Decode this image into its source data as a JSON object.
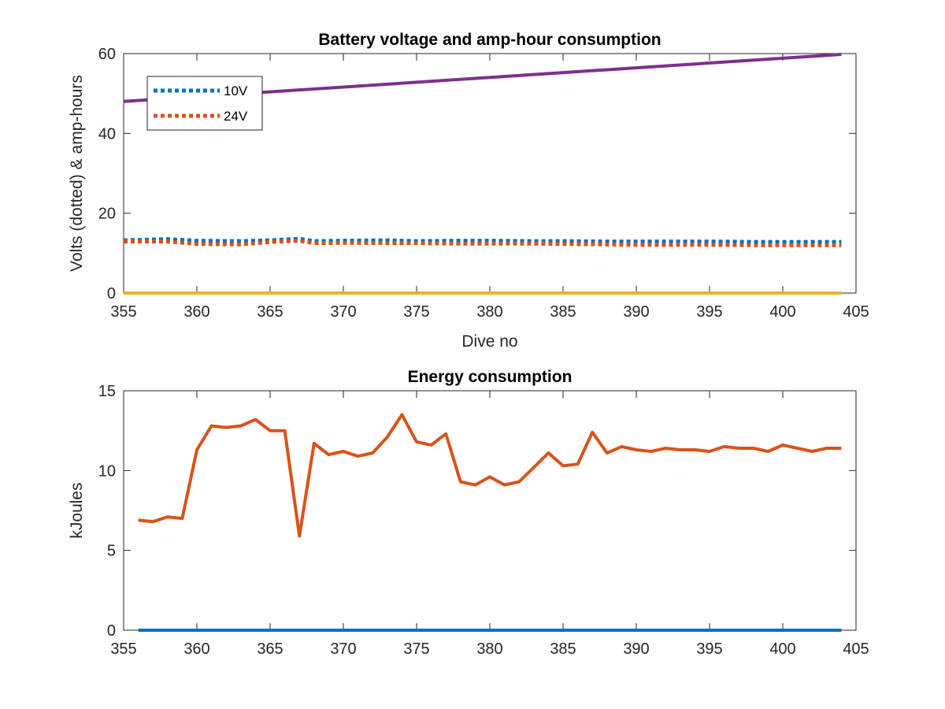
{
  "chart_data": [
    {
      "type": "line",
      "title": "Battery voltage and amp-hour consumption",
      "xlabel": "Dive no",
      "ylabel": "Volts (dotted) & amp-hours",
      "xlim": [
        355,
        405
      ],
      "ylim": [
        0,
        60
      ],
      "xticks": [
        355,
        360,
        365,
        370,
        375,
        380,
        385,
        390,
        395,
        400,
        405
      ],
      "yticks": [
        0,
        20,
        40,
        60
      ],
      "legend": {
        "placement": "top-left",
        "entries": [
          "10V",
          "24V"
        ]
      },
      "grid": false,
      "series": [
        {
          "name": "10V",
          "style": "dotted",
          "color": "#0072BD",
          "x": [
            355,
            358,
            360,
            363,
            365,
            367,
            368,
            370,
            373,
            375,
            378,
            380,
            383,
            385,
            388,
            390,
            393,
            395,
            398,
            400,
            402,
            404
          ],
          "y": [
            13.2,
            13.5,
            13.1,
            13.0,
            13.2,
            13.6,
            13.0,
            13.1,
            13.2,
            13.0,
            13.1,
            13.1,
            13.0,
            13.0,
            12.9,
            12.9,
            12.9,
            12.9,
            12.8,
            12.8,
            12.8,
            12.8
          ]
        },
        {
          "name": "24V",
          "style": "dotted",
          "color": "#D95319",
          "x": [
            355,
            358,
            360,
            363,
            365,
            367,
            368,
            370,
            373,
            375,
            378,
            380,
            383,
            385,
            388,
            390,
            393,
            395,
            398,
            400,
            402,
            404
          ],
          "y": [
            12.9,
            12.9,
            12.3,
            12.2,
            12.8,
            13.1,
            12.5,
            12.6,
            12.5,
            12.5,
            12.4,
            12.4,
            12.4,
            12.3,
            12.2,
            12.1,
            12.1,
            12.1,
            12.0,
            12.0,
            12.0,
            12.0
          ]
        },
        {
          "name": "",
          "style": "solid",
          "color": "#EDB120",
          "x": [
            355,
            404
          ],
          "y": [
            0,
            0
          ]
        },
        {
          "name": "",
          "style": "solid",
          "color": "#7E2F8E",
          "x": [
            355,
            404
          ],
          "y": [
            48,
            59.8
          ]
        }
      ]
    },
    {
      "type": "line",
      "title": "Energy consumption",
      "xlabel": "",
      "ylabel": "kJoules",
      "xlim": [
        355,
        405
      ],
      "ylim": [
        0,
        15
      ],
      "xticks": [
        355,
        360,
        365,
        370,
        375,
        380,
        385,
        390,
        395,
        400,
        405
      ],
      "yticks": [
        0,
        5,
        10,
        15
      ],
      "grid": false,
      "series": [
        {
          "name": "",
          "style": "solid",
          "color": "#D95319",
          "x": [
            356,
            357,
            358,
            359,
            360,
            361,
            362,
            363,
            364,
            365,
            366,
            367,
            368,
            369,
            370,
            371,
            372,
            373,
            374,
            375,
            376,
            377,
            378,
            379,
            380,
            381,
            382,
            383,
            384,
            385,
            386,
            387,
            388,
            389,
            390,
            391,
            392,
            393,
            394,
            395,
            396,
            397,
            398,
            399,
            400,
            401,
            402,
            403,
            404
          ],
          "y": [
            6.9,
            6.8,
            7.1,
            7.0,
            11.3,
            12.8,
            12.7,
            12.8,
            13.2,
            12.5,
            12.5,
            5.9,
            11.7,
            11.0,
            11.2,
            10.9,
            11.1,
            12.1,
            13.5,
            11.8,
            11.6,
            12.3,
            9.3,
            9.1,
            9.6,
            9.1,
            9.3,
            10.2,
            11.1,
            10.3,
            10.4,
            12.4,
            11.1,
            11.5,
            11.3,
            11.2,
            11.4,
            11.3,
            11.3,
            11.2,
            11.5,
            11.4,
            11.4,
            11.2,
            11.6,
            11.4,
            11.2,
            11.4,
            11.4
          ]
        },
        {
          "name": "",
          "style": "solid",
          "color": "#0072BD",
          "x": [
            356,
            404
          ],
          "y": [
            0,
            0
          ]
        }
      ]
    }
  ]
}
